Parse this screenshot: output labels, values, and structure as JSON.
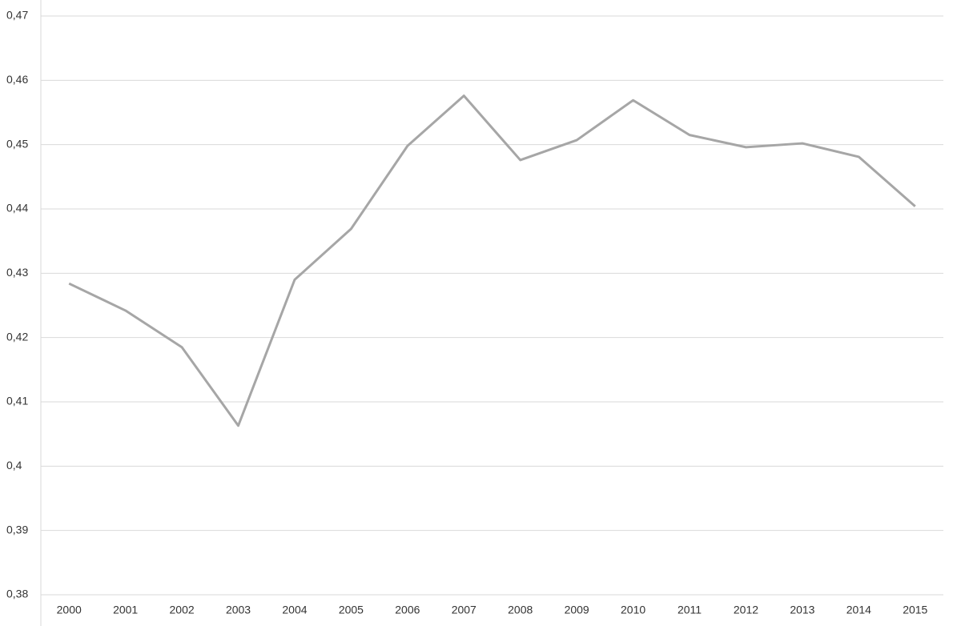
{
  "chart_data": {
    "type": "line",
    "categories": [
      "2000",
      "2001",
      "2002",
      "2003",
      "2004",
      "2005",
      "2006",
      "2007",
      "2008",
      "2009",
      "2010",
      "2011",
      "2012",
      "2013",
      "2014",
      "2015"
    ],
    "series": [
      {
        "color": "#a6a6a6",
        "values": [
          0.4284,
          0.4242,
          0.4185,
          0.4063,
          0.429,
          0.4369,
          0.4498,
          0.4576,
          0.4476,
          0.4507,
          0.4569,
          0.4515,
          0.4496,
          0.4502,
          0.4481,
          0.4404
        ]
      }
    ],
    "ylim": [
      0.38,
      0.47
    ],
    "yticks": [
      {
        "value": 0.38,
        "label": "0,38"
      },
      {
        "value": 0.39,
        "label": "0,39"
      },
      {
        "value": 0.4,
        "label": "0,4"
      },
      {
        "value": 0.41,
        "label": "0,41"
      },
      {
        "value": 0.42,
        "label": "0,42"
      },
      {
        "value": 0.43,
        "label": "0,43"
      },
      {
        "value": 0.44,
        "label": "0,44"
      },
      {
        "value": 0.45,
        "label": "0,45"
      },
      {
        "value": 0.46,
        "label": "0,46"
      },
      {
        "value": 0.47,
        "label": "0,47"
      }
    ],
    "grid": true
  }
}
